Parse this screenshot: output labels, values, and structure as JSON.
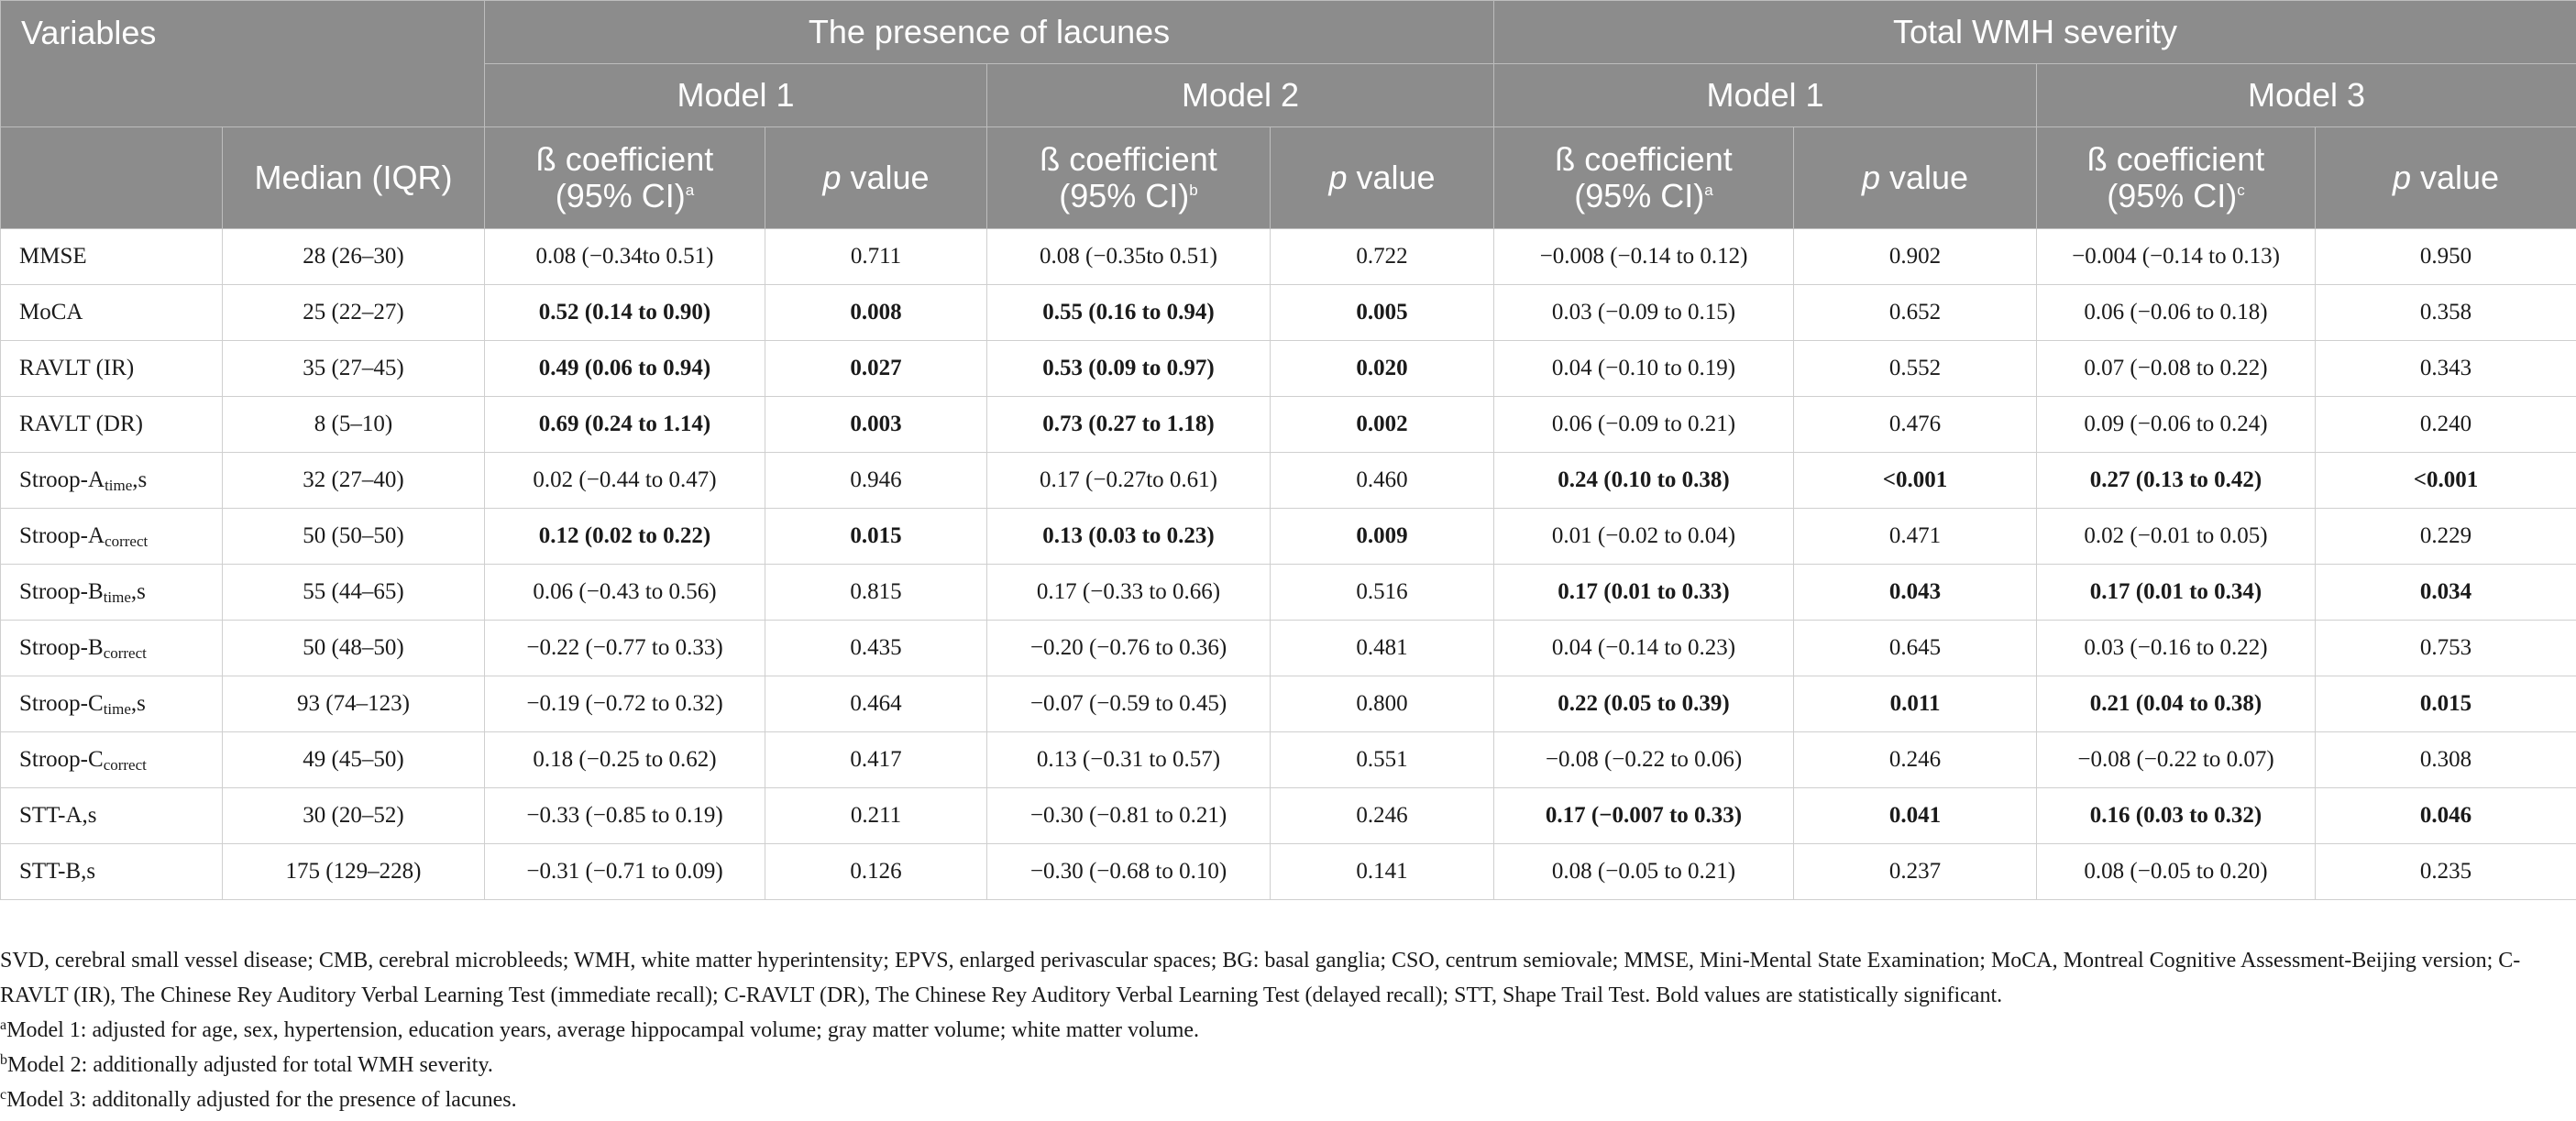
{
  "header": {
    "variables": "Variables",
    "group_lacunes": "The presence of lacunes",
    "group_wmh": "Total WMH severity",
    "model1": "Model 1",
    "model2": "Model 2",
    "model3": "Model 3",
    "median_iqr": "Median (IQR)",
    "beta_line1": "ß coefficient",
    "beta_line2": "(95% CI)",
    "sup_a": "a",
    "sup_b": "b",
    "sup_c": "c",
    "p_letter": "p",
    "p_rest": " value"
  },
  "rows": [
    {
      "name": "MMSE",
      "sub": "",
      "suffix": "",
      "median": "28 (26–30)",
      "l1b": "0.08 (−0.34to 0.51)",
      "l1p": "0.711",
      "l2b": "0.08 (−0.35to 0.51)",
      "l2p": "0.722",
      "w1b": "−0.008 (−0.14 to 0.12)",
      "w1p": "0.902",
      "w3b": "−0.004 (−0.14 to 0.13)",
      "w3p": "0.950",
      "bold": [
        false,
        false,
        false,
        false
      ]
    },
    {
      "name": "MoCA",
      "sub": "",
      "suffix": "",
      "median": "25 (22–27)",
      "l1b": "0.52 (0.14 to 0.90)",
      "l1p": "0.008",
      "l2b": "0.55 (0.16 to 0.94)",
      "l2p": "0.005",
      "w1b": "0.03 (−0.09 to 0.15)",
      "w1p": "0.652",
      "w3b": "0.06 (−0.06 to 0.18)",
      "w3p": "0.358",
      "bold": [
        true,
        true,
        false,
        false
      ]
    },
    {
      "name": "RAVLT (IR)",
      "sub": "",
      "suffix": "",
      "median": "35 (27–45)",
      "l1b": "0.49 (0.06 to 0.94)",
      "l1p": "0.027",
      "l2b": "0.53 (0.09 to 0.97)",
      "l2p": "0.020",
      "w1b": "0.04 (−0.10 to 0.19)",
      "w1p": "0.552",
      "w3b": "0.07 (−0.08 to 0.22)",
      "w3p": "0.343",
      "bold": [
        true,
        true,
        false,
        false
      ]
    },
    {
      "name": "RAVLT (DR)",
      "sub": "",
      "suffix": "",
      "median": "8 (5–10)",
      "l1b": "0.69 (0.24 to 1.14)",
      "l1p": "0.003",
      "l2b": "0.73 (0.27 to 1.18)",
      "l2p": "0.002",
      "w1b": "0.06 (−0.09 to 0.21)",
      "w1p": "0.476",
      "w3b": "0.09 (−0.06 to 0.24)",
      "w3p": "0.240",
      "bold": [
        true,
        true,
        false,
        false
      ]
    },
    {
      "name": "Stroop-A",
      "sub": "time",
      "suffix": ",s",
      "median": "32 (27–40)",
      "l1b": "0.02 (−0.44 to 0.47)",
      "l1p": "0.946",
      "l2b": "0.17 (−0.27to 0.61)",
      "l2p": "0.460",
      "w1b": "0.24 (0.10 to 0.38)",
      "w1p": "<0.001",
      "w3b": "0.27 (0.13 to 0.42)",
      "w3p": "<0.001",
      "bold": [
        false,
        false,
        true,
        true
      ]
    },
    {
      "name": "Stroop-A",
      "sub": "correct",
      "suffix": "",
      "median": "50 (50–50)",
      "l1b": "0.12 (0.02 to 0.22)",
      "l1p": "0.015",
      "l2b": "0.13 (0.03 to 0.23)",
      "l2p": "0.009",
      "w1b": "0.01 (−0.02 to 0.04)",
      "w1p": "0.471",
      "w3b": "0.02 (−0.01 to 0.05)",
      "w3p": "0.229",
      "bold": [
        true,
        true,
        false,
        false
      ]
    },
    {
      "name": "Stroop-B",
      "sub": "time",
      "suffix": ",s",
      "median": "55 (44–65)",
      "l1b": "0.06 (−0.43 to 0.56)",
      "l1p": "0.815",
      "l2b": "0.17 (−0.33 to 0.66)",
      "l2p": "0.516",
      "w1b": "0.17 (0.01 to 0.33)",
      "w1p": "0.043",
      "w3b": "0.17 (0.01 to 0.34)",
      "w3p": "0.034",
      "bold": [
        false,
        false,
        true,
        true
      ]
    },
    {
      "name": "Stroop-B",
      "sub": "correct",
      "suffix": "",
      "median": "50 (48–50)",
      "l1b": "−0.22 (−0.77 to 0.33)",
      "l1p": "0.435",
      "l2b": "−0.20 (−0.76 to 0.36)",
      "l2p": "0.481",
      "w1b": "0.04 (−0.14 to 0.23)",
      "w1p": "0.645",
      "w3b": "0.03 (−0.16 to 0.22)",
      "w3p": "0.753",
      "bold": [
        false,
        false,
        false,
        false
      ]
    },
    {
      "name": "Stroop-C",
      "sub": "time",
      "suffix": ",s",
      "median": "93 (74–123)",
      "l1b": "−0.19 (−0.72 to 0.32)",
      "l1p": "0.464",
      "l2b": "−0.07 (−0.59 to 0.45)",
      "l2p": "0.800",
      "w1b": "0.22 (0.05 to 0.39)",
      "w1p": "0.011",
      "w3b": "0.21 (0.04 to 0.38)",
      "w3p": "0.015",
      "bold": [
        false,
        false,
        true,
        true
      ]
    },
    {
      "name": "Stroop-C",
      "sub": "correct",
      "suffix": "",
      "median": "49 (45–50)",
      "l1b": "0.18 (−0.25 to 0.62)",
      "l1p": "0.417",
      "l2b": "0.13 (−0.31 to 0.57)",
      "l2p": "0.551",
      "w1b": "−0.08 (−0.22 to 0.06)",
      "w1p": "0.246",
      "w3b": "−0.08 (−0.22 to 0.07)",
      "w3p": "0.308",
      "bold": [
        false,
        false,
        false,
        false
      ]
    },
    {
      "name": "STT-A,s",
      "sub": "",
      "suffix": "",
      "median": "30 (20–52)",
      "l1b": "−0.33 (−0.85 to 0.19)",
      "l1p": "0.211",
      "l2b": "−0.30 (−0.81 to 0.21)",
      "l2p": "0.246",
      "w1b": "0.17 (−0.007 to 0.33)",
      "w1p": "0.041",
      "w3b": "0.16 (0.03 to 0.32)",
      "w3p": "0.046",
      "bold": [
        false,
        false,
        true,
        true
      ]
    },
    {
      "name": "STT-B,s",
      "sub": "",
      "suffix": "",
      "median": "175 (129–228)",
      "l1b": "−0.31 (−0.71 to 0.09)",
      "l1p": "0.126",
      "l2b": "−0.30 (−0.68 to 0.10)",
      "l2p": "0.141",
      "w1b": "0.08 (−0.05 to 0.21)",
      "w1p": "0.237",
      "w3b": "0.08 (−0.05 to 0.20)",
      "w3p": "0.235",
      "bold": [
        false,
        false,
        false,
        false
      ]
    }
  ],
  "notes": {
    "abbrev": "SVD, cerebral small vessel disease; CMB, cerebral microbleeds; WMH, white matter hyperintensity; EPVS, enlarged perivascular spaces; BG: basal ganglia; CSO, centrum semiovale; MMSE, Mini-Mental State Examination; MoCA, Montreal Cognitive Assessment-Beijing version; C-RAVLT (IR), The Chinese Rey Auditory Verbal Learning Test (immediate recall); C-RAVLT (DR), The Chinese Rey Auditory Verbal Learning Test (delayed recall); STT, Shape Trail Test. Bold values are statistically significant.",
    "a_mark": "a",
    "a_text": "Model 1: adjusted for age, sex, hypertension, education years, average hippocampal volume; gray matter volume; white matter volume.",
    "b_mark": "b",
    "b_text": "Model 2: additionally adjusted for total WMH severity.",
    "c_mark": "c",
    "c_text": "Model 3: additonally adjusted for the presence of lacunes."
  }
}
